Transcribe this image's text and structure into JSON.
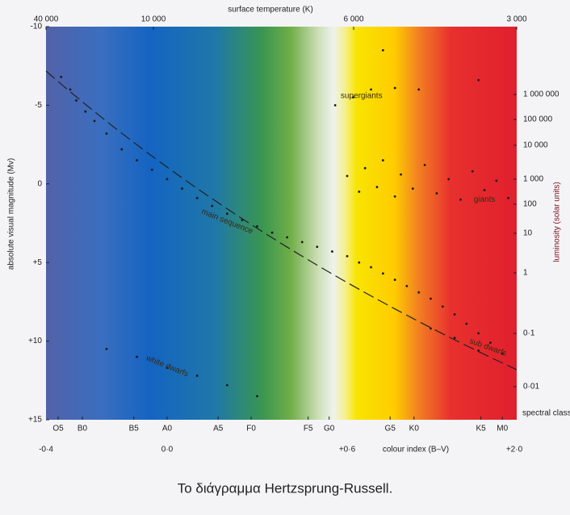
{
  "chart_data": {
    "type": "scatter",
    "caption": "Το διάγραμμα Hertzsprung-Russell.",
    "xlabel": "colour index (B–V)",
    "ylabel": "absolute visual magnitude (Mv)",
    "top_label": "surface temperature (K)",
    "y2label": "luminosity (solar units)",
    "spectral_label": "spectral class",
    "xlim": [
      -0.4,
      2.0
    ],
    "xticks": [
      {
        "value": -0.4,
        "label": "-0·4"
      },
      {
        "value": 0,
        "label": "0·0"
      },
      {
        "value": 0.6,
        "label": "+0·6"
      },
      {
        "value": 2.0,
        "label": "+2·0"
      }
    ],
    "ylim": [
      -10,
      15
    ],
    "yticks": [
      -10,
      -5,
      0,
      {
        "value": 5,
        "label": "+5"
      },
      {
        "value": 10,
        "label": "+10"
      },
      {
        "value": 15,
        "label": "+15"
      }
    ],
    "top_ticks": [
      {
        "value": 40000,
        "label": "40 000"
      },
      {
        "value": 10000,
        "label": "10 000"
      },
      {
        "value": 6000,
        "label": "6 000"
      },
      {
        "value": 3000,
        "label": "3 000"
      }
    ],
    "y2ticks": [
      {
        "value": 1000000,
        "label": "1 000 000"
      },
      {
        "value": 100000,
        "label": "100 000"
      },
      {
        "value": 10000,
        "label": "10 000"
      },
      {
        "value": 1000,
        "label": "1 000"
      },
      100,
      10,
      1,
      {
        "value": 0.1,
        "label": "0·1"
      },
      {
        "value": 0.01,
        "label": "0·01"
      }
    ],
    "spectral_ticks": [
      {
        "value": -0.36,
        "label": "O5"
      },
      {
        "value": -0.28,
        "label": "B0"
      },
      {
        "value": -0.11,
        "label": "B5"
      },
      {
        "value": 0,
        "label": "A0"
      },
      {
        "value": 0.17,
        "label": "A5"
      },
      {
        "value": 0.28,
        "label": "F0"
      },
      {
        "value": 0.47,
        "label": "F5"
      },
      {
        "value": 0.54,
        "label": "G0"
      },
      {
        "value": 0.96,
        "label": "G5"
      },
      {
        "value": 1.16,
        "label": "K0"
      },
      {
        "value": 1.72,
        "label": "K5"
      },
      {
        "value": 1.9,
        "label": "M0"
      }
    ],
    "annotations": [
      {
        "text": "supergiants",
        "x": 0.72,
        "y": -5.6
      },
      {
        "text": "giants",
        "x": 1.75,
        "y": 1.0
      },
      {
        "text": "white dwarfs",
        "x": 0.0,
        "y": 11.6
      },
      {
        "text": "main sequence",
        "x": 0.2,
        "y": 2.4
      },
      {
        "text": "sub dwarfs",
        "x": 1.78,
        "y": 10.4
      }
    ],
    "color": "#1a1a1a",
    "x": [
      -0.35,
      -0.32,
      -0.3,
      -0.27,
      -0.24,
      -0.2,
      -0.15,
      -0.1,
      -0.05,
      0.0,
      0.05,
      0.1,
      0.15,
      0.2,
      0.25,
      0.3,
      0.35,
      0.4,
      0.45,
      0.5,
      0.55,
      0.6,
      0.7,
      0.8,
      0.9,
      1.0,
      1.1,
      1.2,
      1.3,
      1.4,
      1.5,
      1.6,
      1.7,
      1.8,
      1.9,
      0.6,
      0.7,
      0.75,
      0.85,
      0.9,
      1.0,
      1.05,
      1.15,
      1.25,
      1.35,
      1.45,
      1.55,
      1.65,
      1.75,
      1.85,
      1.95,
      0.56,
      0.65,
      0.8,
      1.0,
      1.2,
      1.7,
      0.9,
      -0.2,
      -0.1,
      0.0,
      0.1,
      0.2,
      0.3,
      1.3,
      1.5,
      1.7
    ],
    "values": [
      -6.8,
      -6.0,
      -5.3,
      -4.6,
      -4.0,
      -3.2,
      -2.2,
      -1.5,
      -0.9,
      -0.3,
      0.3,
      0.9,
      1.4,
      1.9,
      2.3,
      2.7,
      3.1,
      3.4,
      3.7,
      4.0,
      4.3,
      4.6,
      5.0,
      5.3,
      5.7,
      6.1,
      6.5,
      6.9,
      7.3,
      7.8,
      8.3,
      8.9,
      9.5,
      10.1,
      10.8,
      -0.5,
      0.5,
      -1.0,
      0.2,
      -1.5,
      0.8,
      -0.6,
      0.3,
      -1.2,
      0.6,
      -0.3,
      1.0,
      -0.8,
      0.4,
      -0.2,
      0.9,
      -5.0,
      -5.5,
      -6.0,
      -6.1,
      -6.0,
      -6.6,
      -8.5,
      10.5,
      11.0,
      11.7,
      12.2,
      12.8,
      13.5,
      9.2,
      9.8,
      10.6
    ]
  }
}
